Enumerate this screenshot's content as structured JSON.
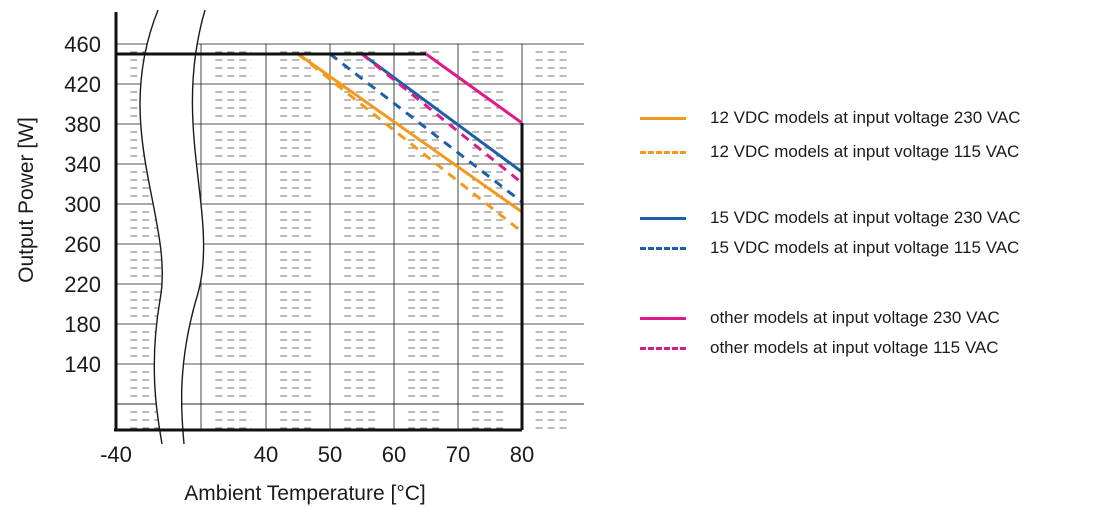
{
  "chart_data": {
    "type": "line",
    "title": "",
    "xlabel": "Ambient Temperature [°C]",
    "ylabel": "Output Power [W]",
    "x_ticks": [
      -40,
      40,
      50,
      60,
      70,
      80
    ],
    "y_ticks": [
      140,
      180,
      220,
      260,
      300,
      340,
      380,
      420,
      460
    ],
    "xlim": [
      -40,
      90
    ],
    "ylim": [
      100,
      480
    ],
    "x_axis_break": "between -40 and 40",
    "grid": true,
    "legend_position": "right",
    "series": [
      {
        "name": "12 VDC models at input voltage 230 VAC",
        "color": "#f39a1e",
        "dash": false,
        "x": [
          -40,
          45,
          80
        ],
        "y": [
          450,
          450,
          292
        ]
      },
      {
        "name": "12 VDC models at input voltage 115 VAC",
        "color": "#f39a1e",
        "dash": true,
        "x": [
          -40,
          45,
          80
        ],
        "y": [
          450,
          450,
          272
        ]
      },
      {
        "name": "15 VDC models at input voltage 230 VAC",
        "color": "#1f5fa8",
        "dash": false,
        "x": [
          -40,
          55,
          80
        ],
        "y": [
          450,
          450,
          332
        ]
      },
      {
        "name": "15 VDC models at input voltage 115 VAC",
        "color": "#1f5fa8",
        "dash": true,
        "x": [
          -40,
          50,
          80
        ],
        "y": [
          450,
          450,
          302
        ]
      },
      {
        "name": "other models at input voltage 230 VAC",
        "color": "#e0198a",
        "dash": false,
        "x": [
          -40,
          65,
          80
        ],
        "y": [
          450,
          450,
          381
        ]
      },
      {
        "name": "other models at input voltage 115 VAC",
        "color": "#e0198a",
        "dash": true,
        "x": [
          -40,
          55,
          80
        ],
        "y": [
          450,
          450,
          321
        ]
      }
    ]
  }
}
